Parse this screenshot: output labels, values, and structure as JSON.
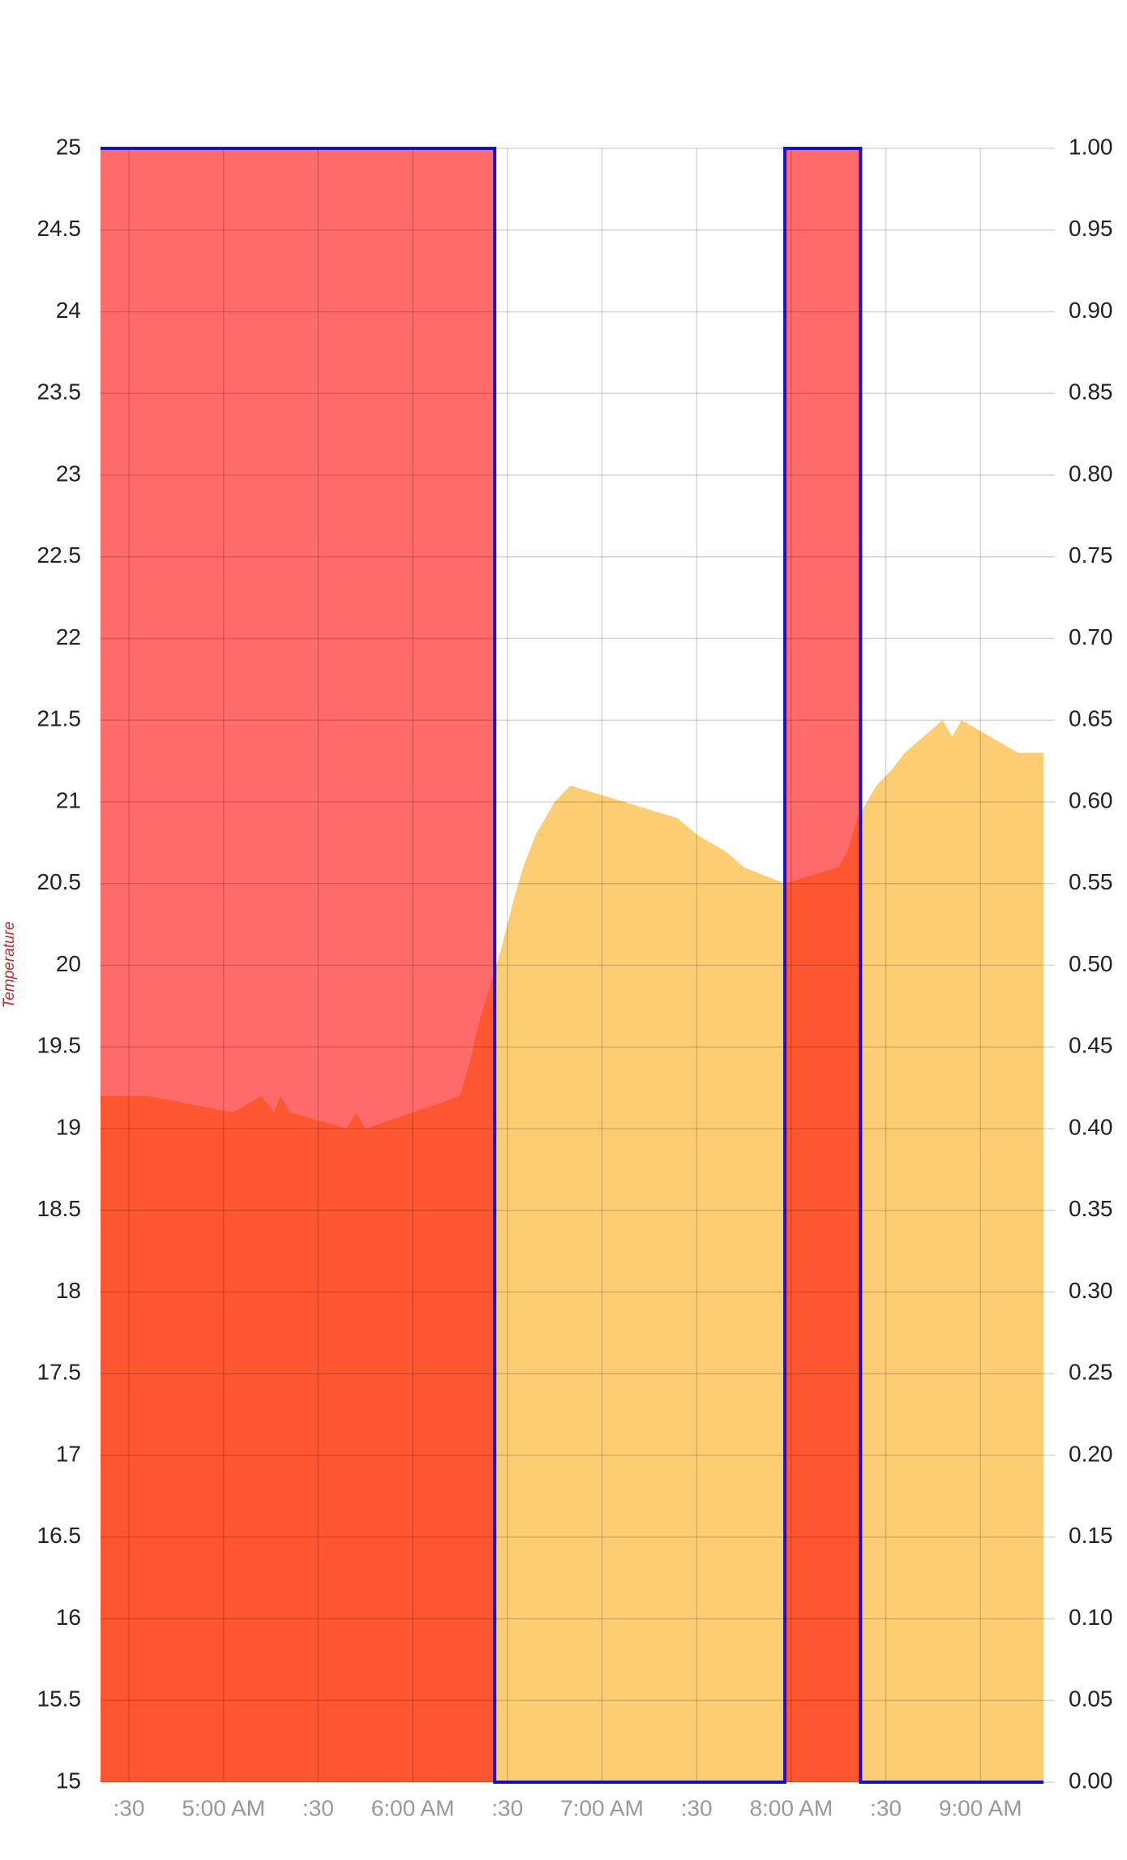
{
  "chart_data": {
    "type": "area",
    "y_label": "Temperature",
    "y_label_color": "#c62828",
    "grid": true,
    "xlim": [
      "04:21",
      "09:20"
    ],
    "xticks": [
      {
        "value": "04:30",
        "label": ":30"
      },
      {
        "value": "05:00",
        "label": "5:00 AM"
      },
      {
        "value": "05:30",
        "label": ":30"
      },
      {
        "value": "06:00",
        "label": "6:00 AM"
      },
      {
        "value": "06:30",
        "label": ":30"
      },
      {
        "value": "07:00",
        "label": "7:00 AM"
      },
      {
        "value": "07:30",
        "label": ":30"
      },
      {
        "value": "08:00",
        "label": "8:00 AM"
      },
      {
        "value": "08:30",
        "label": ":30"
      },
      {
        "value": "09:00",
        "label": "9:00 AM"
      }
    ],
    "ylim": [
      15,
      25
    ],
    "yticks": [
      15,
      15.5,
      16,
      16.5,
      17,
      17.5,
      18,
      18.5,
      19,
      19.5,
      20,
      20.5,
      21,
      21.5,
      22,
      22.5,
      23,
      23.5,
      24,
      24.5,
      25
    ],
    "y2lim": [
      0,
      1
    ],
    "y2ticks": [
      {
        "value": 0,
        "label": "0.00"
      },
      {
        "value": 0.05,
        "label": "0.05"
      },
      {
        "value": 0.1,
        "label": "0.10"
      },
      {
        "value": 0.15,
        "label": "0.15"
      },
      {
        "value": 0.2,
        "label": "0.20"
      },
      {
        "value": 0.25,
        "label": "0.25"
      },
      {
        "value": 0.3,
        "label": "0.30"
      },
      {
        "value": 0.35,
        "label": "0.35"
      },
      {
        "value": 0.4,
        "label": "0.40"
      },
      {
        "value": 0.45,
        "label": "0.45"
      },
      {
        "value": 0.5,
        "label": "0.50"
      },
      {
        "value": 0.55,
        "label": "0.55"
      },
      {
        "value": 0.6,
        "label": "0.60"
      },
      {
        "value": 0.65,
        "label": "0.65"
      },
      {
        "value": 0.7,
        "label": "0.70"
      },
      {
        "value": 0.75,
        "label": "0.75"
      },
      {
        "value": 0.8,
        "label": "0.80"
      },
      {
        "value": 0.85,
        "label": "0.85"
      },
      {
        "value": 0.9,
        "label": "0.90"
      },
      {
        "value": 0.95,
        "label": "0.95"
      },
      {
        "value": 1,
        "label": "1.00"
      }
    ],
    "series": [
      {
        "type": "area",
        "color": "#fdcd74",
        "x": [
          "04:21",
          "04:36",
          "05:03",
          "05:12",
          "05:16",
          "05:18",
          "05:21",
          "05:39",
          "05:42",
          "05:45",
          "06:15",
          "06:18",
          "06:21",
          "06:25",
          "06:28",
          "06:32",
          "06:35",
          "06:39",
          "06:45",
          "06:50",
          "07:24",
          "07:30",
          "07:39",
          "07:45",
          "07:58",
          "08:15",
          "08:18",
          "08:21",
          "08:27",
          "08:32",
          "08:36",
          "08:48",
          "08:51",
          "08:54",
          "09:12",
          "09:20"
        ],
        "values": [
          19.2,
          19.2,
          19.1,
          19.2,
          19.1,
          19.2,
          19.1,
          19.0,
          19.1,
          19.0,
          19.2,
          19.4,
          19.65,
          19.9,
          20.1,
          20.4,
          20.6,
          20.8,
          21.0,
          21.1,
          20.9,
          20.8,
          20.7,
          20.6,
          20.5,
          20.6,
          20.7,
          20.9,
          21.1,
          21.2,
          21.3,
          21.5,
          21.4,
          21.5,
          21.3,
          21.3
        ]
      },
      {
        "type": "step",
        "axis": "y2",
        "color": "#ff0000",
        "line_color": "#1a14cc",
        "x": [
          "04:21",
          "06:26",
          "07:58",
          "08:22",
          "09:20"
        ],
        "values": [
          1,
          0,
          1,
          0,
          0
        ]
      }
    ]
  }
}
